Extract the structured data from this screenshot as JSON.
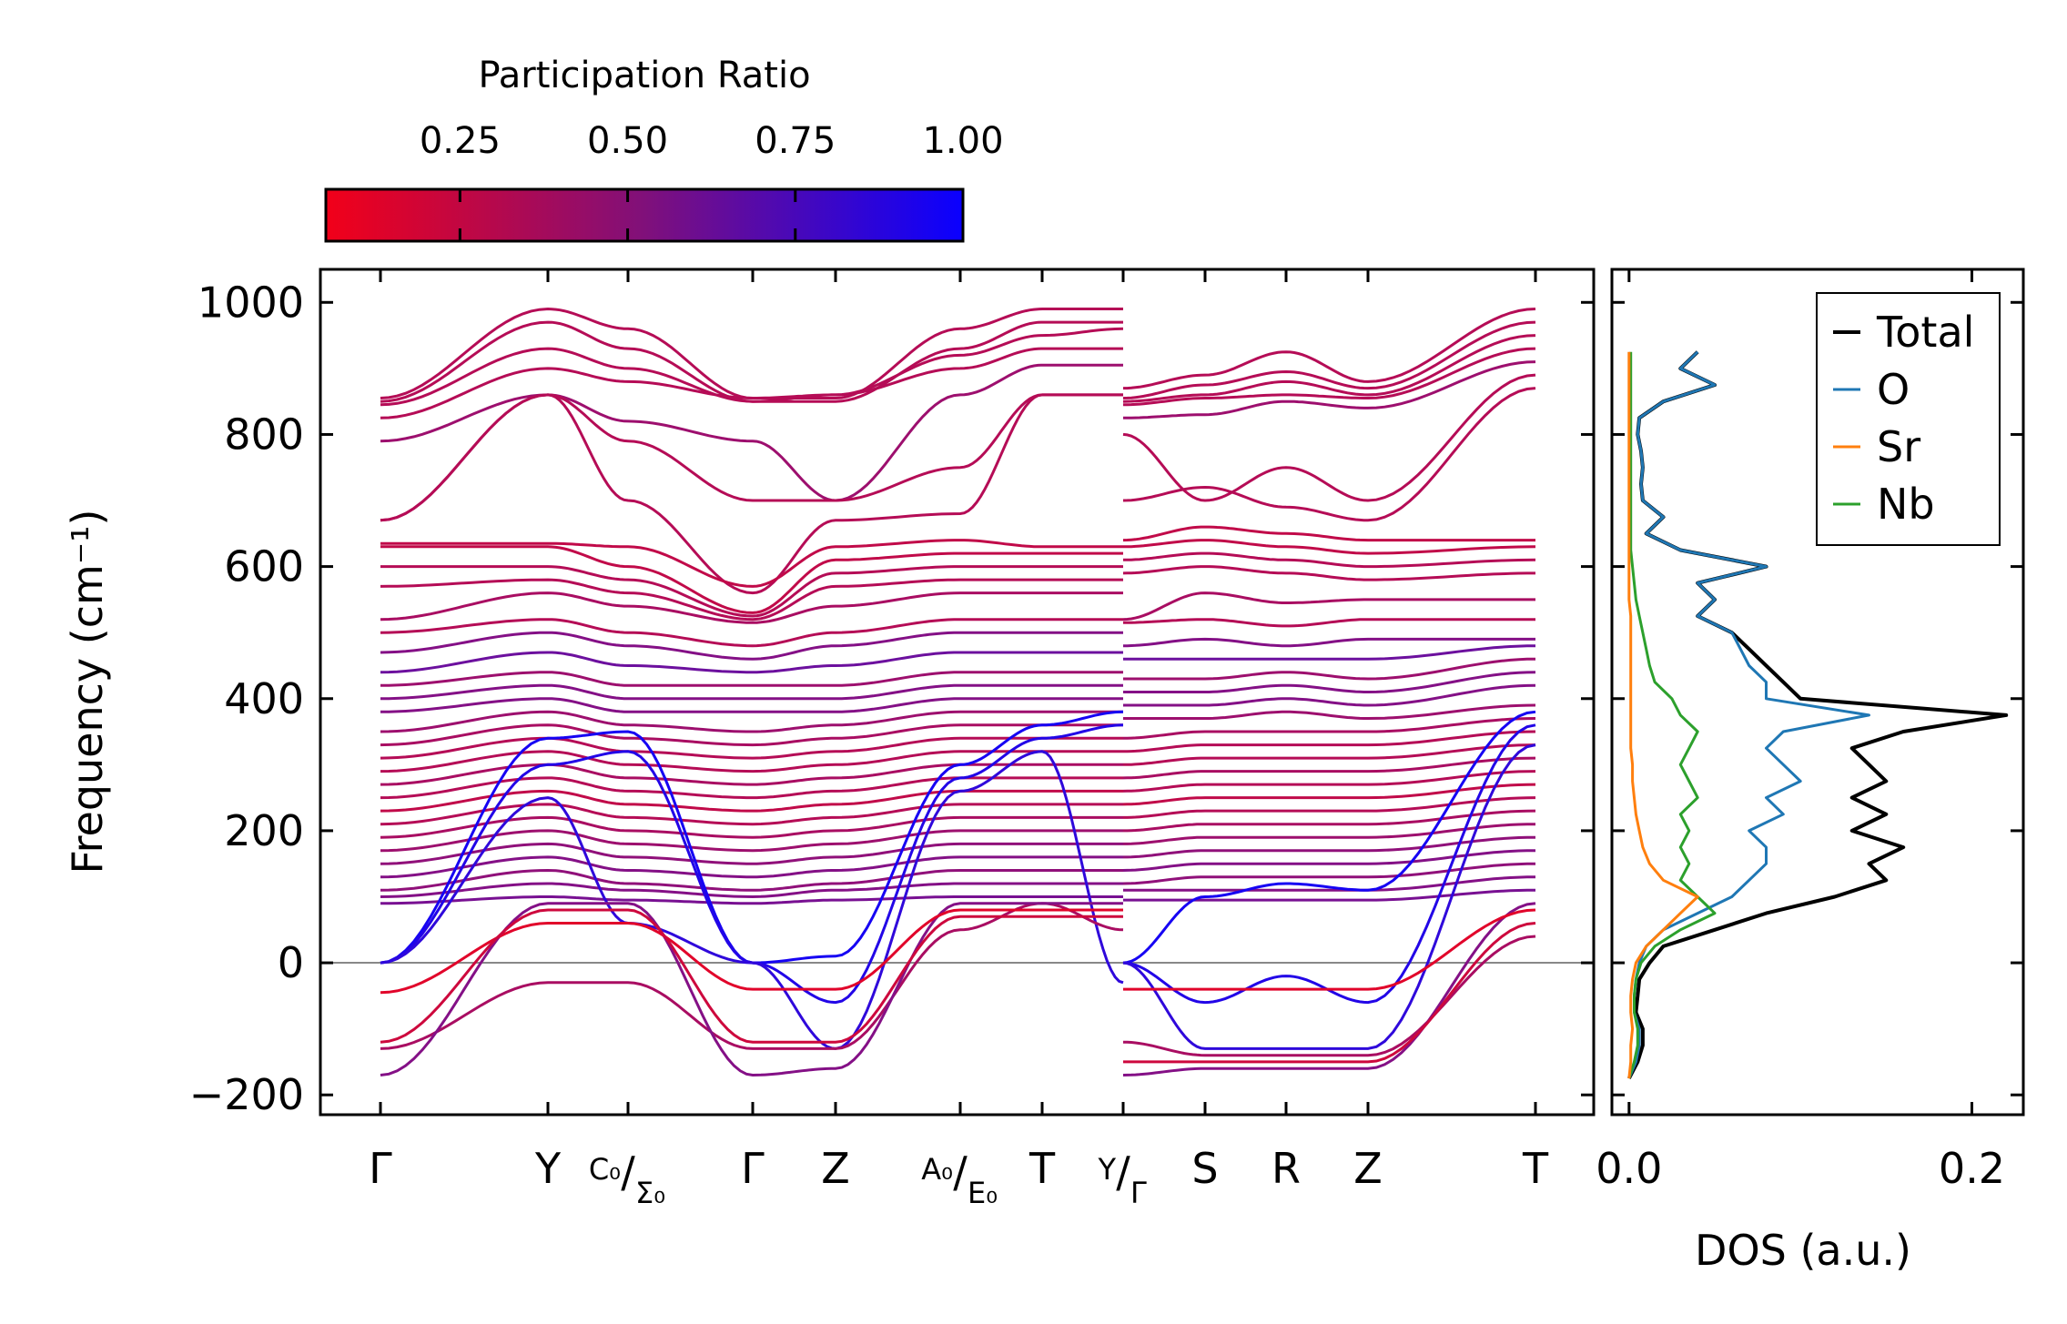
{
  "chart_data": {
    "type": "line",
    "title": "",
    "colorbar": {
      "label": "Participation Ratio",
      "ticks": [
        "0.25",
        "0.50",
        "0.75",
        "1.00"
      ],
      "tick_values": [
        0.25,
        0.5,
        0.75,
        1.0
      ],
      "range": [
        0.05,
        1.0
      ],
      "low_color": "#ff0010",
      "high_color": "#0000ff"
    },
    "band_panel": {
      "ylabel": "Frequency (cm⁻¹)",
      "ylim": [
        -230,
        1050
      ],
      "yticks": [
        -200,
        0,
        200,
        400,
        600,
        800,
        1000
      ],
      "ytick_labels": [
        "−200",
        "0",
        "200",
        "400",
        "600",
        "800",
        "1000"
      ],
      "kpath_labels": [
        "Γ",
        "Y",
        "C₀/Σ₀",
        "Γ",
        "Z",
        "A₀/E₀",
        "T",
        "Y/Γ",
        "S",
        "R",
        "Z",
        "T"
      ],
      "bands_note": "frequency at nodes: Γ,Y,C0,Γ,Z,A0,T,Y | Γ,S,R,Z,T",
      "bands": [
        {
          "pr": 0.3,
          "f": [
            855,
            990,
            960,
            855,
            855,
            960,
            990,
            990,
            870,
            890,
            925,
            880,
            990
          ]
        },
        {
          "pr": 0.3,
          "f": [
            850,
            970,
            930,
            850,
            850,
            930,
            970,
            970,
            855,
            875,
            895,
            870,
            970
          ]
        },
        {
          "pr": 0.3,
          "f": [
            845,
            930,
            900,
            850,
            860,
            920,
            950,
            960,
            850,
            860,
            880,
            860,
            950
          ]
        },
        {
          "pr": 0.3,
          "f": [
            825,
            900,
            880,
            855,
            860,
            900,
            930,
            930,
            845,
            855,
            860,
            855,
            930
          ]
        },
        {
          "pr": 0.4,
          "f": [
            790,
            860,
            820,
            790,
            700,
            860,
            905,
            905,
            825,
            830,
            850,
            840,
            910
          ]
        },
        {
          "pr": 0.3,
          "f": [
            670,
            860,
            790,
            700,
            700,
            750,
            860,
            860,
            800,
            700,
            750,
            700,
            890
          ]
        },
        {
          "pr": 0.3,
          "f": [
            670,
            860,
            700,
            560,
            670,
            680,
            860,
            860,
            700,
            720,
            690,
            670,
            870
          ]
        },
        {
          "pr": 0.25,
          "f": [
            635,
            635,
            630,
            570,
            630,
            640,
            630,
            630,
            640,
            660,
            650,
            640,
            640
          ]
        },
        {
          "pr": 0.25,
          "f": [
            630,
            630,
            600,
            530,
            610,
            620,
            620,
            620,
            630,
            640,
            630,
            620,
            630
          ]
        },
        {
          "pr": 0.3,
          "f": [
            600,
            600,
            580,
            525,
            590,
            600,
            600,
            600,
            610,
            620,
            610,
            600,
            610
          ]
        },
        {
          "pr": 0.3,
          "f": [
            570,
            580,
            560,
            520,
            570,
            580,
            580,
            580,
            590,
            600,
            590,
            580,
            590
          ]
        },
        {
          "pr": 0.35,
          "f": [
            520,
            560,
            540,
            515,
            540,
            560,
            560,
            560,
            520,
            560,
            545,
            550,
            550
          ]
        },
        {
          "pr": 0.3,
          "f": [
            500,
            520,
            500,
            480,
            500,
            520,
            520,
            520,
            515,
            520,
            510,
            520,
            520
          ]
        },
        {
          "pr": 0.5,
          "f": [
            470,
            500,
            480,
            460,
            480,
            500,
            500,
            500,
            480,
            490,
            480,
            490,
            490
          ]
        },
        {
          "pr": 0.6,
          "f": [
            440,
            470,
            450,
            440,
            450,
            470,
            470,
            470,
            460,
            460,
            460,
            460,
            480
          ]
        },
        {
          "pr": 0.4,
          "f": [
            420,
            440,
            420,
            420,
            420,
            440,
            440,
            440,
            430,
            430,
            440,
            430,
            460
          ]
        },
        {
          "pr": 0.5,
          "f": [
            400,
            420,
            400,
            400,
            400,
            420,
            420,
            420,
            410,
            410,
            420,
            410,
            440
          ]
        },
        {
          "pr": 0.5,
          "f": [
            380,
            400,
            380,
            380,
            380,
            400,
            400,
            400,
            390,
            390,
            400,
            390,
            420
          ]
        },
        {
          "pr": 0.4,
          "f": [
            350,
            380,
            360,
            350,
            360,
            380,
            380,
            380,
            370,
            370,
            380,
            370,
            390
          ]
        },
        {
          "pr": 0.35,
          "f": [
            330,
            360,
            340,
            330,
            340,
            360,
            360,
            360,
            340,
            350,
            350,
            350,
            370
          ]
        },
        {
          "pr": 0.3,
          "f": [
            310,
            340,
            320,
            310,
            320,
            340,
            340,
            340,
            320,
            330,
            330,
            330,
            350
          ]
        },
        {
          "pr": 0.3,
          "f": [
            290,
            320,
            300,
            290,
            300,
            320,
            320,
            320,
            300,
            310,
            310,
            310,
            330
          ]
        },
        {
          "pr": 0.35,
          "f": [
            270,
            300,
            280,
            270,
            280,
            300,
            300,
            300,
            280,
            290,
            290,
            290,
            310
          ]
        },
        {
          "pr": 0.3,
          "f": [
            250,
            280,
            260,
            250,
            260,
            280,
            280,
            280,
            260,
            270,
            270,
            270,
            290
          ]
        },
        {
          "pr": 0.25,
          "f": [
            230,
            260,
            240,
            230,
            240,
            260,
            260,
            260,
            240,
            250,
            250,
            250,
            270
          ]
        },
        {
          "pr": 0.3,
          "f": [
            210,
            240,
            220,
            210,
            220,
            240,
            240,
            240,
            220,
            230,
            230,
            230,
            250
          ]
        },
        {
          "pr": 0.35,
          "f": [
            190,
            220,
            200,
            190,
            200,
            220,
            220,
            220,
            200,
            210,
            210,
            210,
            230
          ]
        },
        {
          "pr": 0.4,
          "f": [
            170,
            200,
            180,
            170,
            180,
            200,
            200,
            200,
            180,
            190,
            190,
            190,
            210
          ]
        },
        {
          "pr": 0.45,
          "f": [
            150,
            180,
            160,
            150,
            160,
            180,
            180,
            180,
            160,
            170,
            170,
            170,
            190
          ]
        },
        {
          "pr": 0.5,
          "f": [
            130,
            160,
            140,
            130,
            140,
            160,
            160,
            160,
            140,
            150,
            150,
            150,
            170
          ]
        },
        {
          "pr": 0.45,
          "f": [
            110,
            140,
            120,
            110,
            120,
            140,
            140,
            140,
            120,
            130,
            130,
            130,
            150
          ]
        },
        {
          "pr": 0.5,
          "f": [
            100,
            120,
            110,
            100,
            110,
            120,
            120,
            120,
            110,
            110,
            110,
            110,
            130
          ]
        },
        {
          "pr": 0.55,
          "f": [
            90,
            100,
            95,
            90,
            95,
            100,
            100,
            100,
            95,
            95,
            95,
            95,
            110
          ]
        },
        {
          "pr": 0.95,
          "f": [
            0,
            340,
            350,
            0,
            10,
            300,
            360,
            380,
            0,
            100,
            120,
            110,
            380
          ]
        },
        {
          "pr": 0.9,
          "f": [
            0,
            300,
            320,
            0,
            -60,
            280,
            340,
            360,
            0,
            -60,
            -20,
            -60,
            360
          ]
        },
        {
          "pr": 0.85,
          "f": [
            0,
            250,
            60,
            0,
            -130,
            260,
            320,
            -30,
            0,
            -130,
            -130,
            -130,
            330
          ]
        },
        {
          "pr": 0.35,
          "f": [
            -130,
            -30,
            -30,
            -130,
            -130,
            50,
            90,
            50,
            -120,
            -140,
            -140,
            -140,
            40
          ]
        },
        {
          "pr": 0.5,
          "f": [
            -170,
            90,
            90,
            -170,
            -160,
            90,
            90,
            90,
            -170,
            -160,
            -160,
            -160,
            90
          ]
        },
        {
          "pr": 0.12,
          "f": [
            -45,
            60,
            60,
            -40,
            -40,
            80,
            80,
            80,
            -40,
            -40,
            -40,
            -40,
            80
          ]
        },
        {
          "pr": 0.2,
          "f": [
            -120,
            80,
            80,
            -120,
            -120,
            70,
            70,
            70,
            -150,
            -150,
            -150,
            -150,
            60
          ]
        }
      ]
    },
    "dos_panel": {
      "xlabel": "DOS (a.u.)",
      "xlim": [
        -0.01,
        0.23
      ],
      "xticks": [
        0.0,
        0.2
      ],
      "xtick_labels": [
        "0.0",
        "0.2"
      ],
      "legend_position": "top-right",
      "frequency": [
        -175,
        -150,
        -125,
        -100,
        -75,
        -50,
        -25,
        0,
        25,
        50,
        75,
        100,
        125,
        150,
        175,
        200,
        225,
        250,
        275,
        300,
        325,
        350,
        375,
        400,
        425,
        450,
        475,
        500,
        525,
        550,
        575,
        600,
        625,
        650,
        675,
        700,
        725,
        750,
        775,
        800,
        825,
        850,
        875,
        900,
        925
      ],
      "series": [
        {
          "name": "Total",
          "color": "#000000",
          "values": [
            0,
            0.005,
            0.008,
            0.008,
            0.004,
            0.005,
            0.006,
            0.012,
            0.02,
            0.05,
            0.08,
            0.12,
            0.15,
            0.14,
            0.16,
            0.13,
            0.15,
            0.13,
            0.15,
            0.14,
            0.13,
            0.16,
            0.22,
            0.1,
            0.09,
            0.08,
            0.07,
            0.06,
            0.04,
            0.05,
            0.04,
            0.08,
            0.03,
            0.01,
            0.02,
            0.008,
            0.007,
            0.008,
            0.007,
            0.005,
            0.006,
            0.02,
            0.05,
            0.03,
            0.04
          ]
        },
        {
          "name": "O",
          "color": "#1f77b4",
          "values": [
            0,
            0.004,
            0.006,
            0.006,
            0.003,
            0.003,
            0.004,
            0.006,
            0.01,
            0.02,
            0.04,
            0.06,
            0.07,
            0.08,
            0.08,
            0.07,
            0.09,
            0.08,
            0.1,
            0.09,
            0.08,
            0.09,
            0.14,
            0.08,
            0.08,
            0.07,
            0.065,
            0.06,
            0.04,
            0.05,
            0.04,
            0.08,
            0.03,
            0.01,
            0.02,
            0.008,
            0.007,
            0.008,
            0.007,
            0.005,
            0.006,
            0.02,
            0.05,
            0.03,
            0.04
          ]
        },
        {
          "name": "Sr",
          "color": "#ff7f0e",
          "values": [
            0,
            0.001,
            0.001,
            0.002,
            0.001,
            0.001,
            0.002,
            0.004,
            0.01,
            0.02,
            0.03,
            0.04,
            0.02,
            0.012,
            0.008,
            0.006,
            0.004,
            0.003,
            0.002,
            0.002,
            0.001,
            0.001,
            0.001,
            0.001,
            0.001,
            0.001,
            0.001,
            0.001,
            0.001,
            0,
            0,
            0,
            0,
            0,
            0,
            0,
            0,
            0,
            0,
            0,
            0,
            0,
            0,
            0,
            0
          ]
        },
        {
          "name": "Nb",
          "color": "#2ca02c",
          "values": [
            0,
            0.003,
            0.005,
            0.005,
            0.003,
            0.003,
            0.004,
            0.007,
            0.015,
            0.03,
            0.05,
            0.04,
            0.03,
            0.035,
            0.03,
            0.035,
            0.03,
            0.04,
            0.035,
            0.03,
            0.035,
            0.04,
            0.03,
            0.025,
            0.015,
            0.012,
            0.01,
            0.008,
            0.006,
            0.004,
            0.003,
            0.002,
            0.001,
            0.001,
            0.001,
            0.001,
            0.001,
            0.001,
            0.001,
            0.001,
            0.001,
            0.001,
            0.001,
            0.001,
            0.001
          ]
        }
      ]
    }
  }
}
